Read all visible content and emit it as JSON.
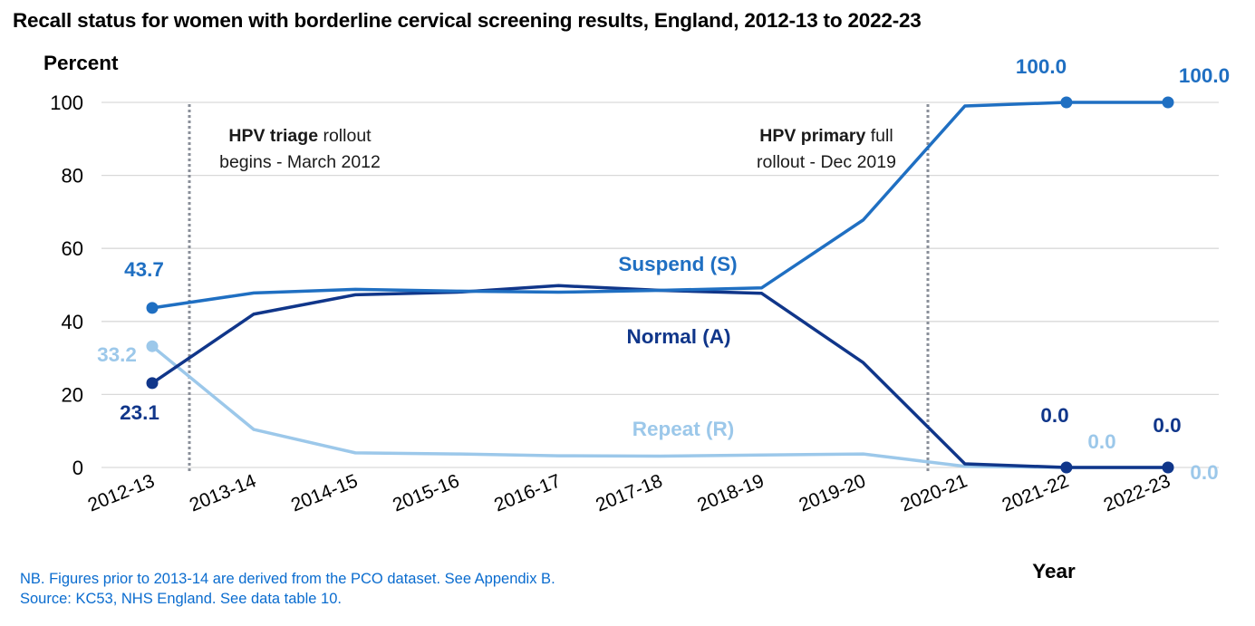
{
  "title": "Recall status for women with borderline cervical screening results, England, 2012-13 to 2022-23",
  "notes": [
    "NB. Figures prior to 2013-14 are derived from the PCO dataset. See Appendix B.",
    "Source: KC53, NHS England. See data table 10."
  ],
  "chart_data": {
    "type": "line",
    "ylabel": "Percent",
    "xlabel": "Year",
    "ylim": [
      0,
      100
    ],
    "yticks": [
      0,
      20,
      40,
      60,
      80,
      100
    ],
    "grid": true,
    "categories": [
      "2012-13",
      "2013-14",
      "2014-15",
      "2015-16",
      "2016-17",
      "2017-18",
      "2018-19",
      "2019-20",
      "2020-21",
      "2021-22",
      "2022-23"
    ],
    "series": [
      {
        "name": "Suspend (S)",
        "color": "#1f6fc2",
        "values": [
          43.7,
          47.8,
          48.8,
          48.3,
          48.0,
          48.5,
          49.2,
          67.8,
          99.0,
          100.0,
          100.0
        ],
        "labels": [
          {
            "index": 0,
            "text": "43.7"
          },
          {
            "index": 9,
            "text": "100.0"
          },
          {
            "index": 10,
            "text": "100.0"
          }
        ]
      },
      {
        "name": "Normal (A)",
        "color": "#10368a",
        "values": [
          23.1,
          42.0,
          47.3,
          48.0,
          49.8,
          48.5,
          47.7,
          28.7,
          1.0,
          0.0,
          0.0
        ],
        "labels": [
          {
            "index": 0,
            "text": "23.1"
          },
          {
            "index": 9,
            "text": "0.0"
          },
          {
            "index": 10,
            "text": "0.0"
          }
        ]
      },
      {
        "name": "Repeat (R)",
        "color": "#9cc8ea",
        "values": [
          33.2,
          10.4,
          4.0,
          3.7,
          3.2,
          3.1,
          3.4,
          3.7,
          0.3,
          0.0,
          0.0
        ],
        "labels": [
          {
            "index": 0,
            "text": "33.2"
          },
          {
            "index": 9,
            "text": "0.0"
          },
          {
            "index": 10,
            "text": "0.0"
          }
        ]
      }
    ],
    "annotations": [
      {
        "bold": "HPV triage",
        "rest": " rollout",
        "line2": "begins - March 2012"
      },
      {
        "bold": "HPV primary",
        "rest": " full",
        "line2": "rollout - Dec 2019"
      }
    ]
  }
}
